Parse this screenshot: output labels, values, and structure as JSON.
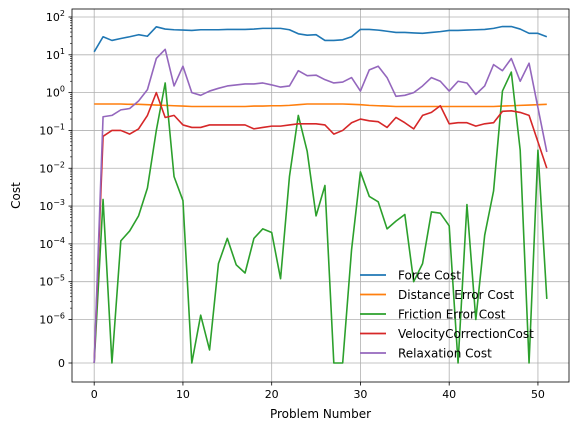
{
  "chart_data": {
    "type": "line",
    "title": "",
    "xlabel": "Problem Number",
    "ylabel": "Cost",
    "xlim": [
      -2.5,
      53.5
    ],
    "yscale": "symlog",
    "linthresh": 1e-06,
    "grid": true,
    "legend_position": "lower-right",
    "x_ticks": [
      0,
      10,
      20,
      30,
      40,
      50
    ],
    "x_tick_labels": [
      "0",
      "10",
      "20",
      "30",
      "40",
      "50"
    ],
    "y_ticks": [
      0,
      1e-06,
      1e-05,
      0.0001,
      0.001,
      0.01,
      0.1,
      1,
      10,
      100
    ],
    "y_tick_labels": [
      {
        "base": "",
        "exp": "",
        "plain": "0"
      },
      {
        "base": "10",
        "exp": "−6"
      },
      {
        "base": "10",
        "exp": "−5"
      },
      {
        "base": "10",
        "exp": "−4"
      },
      {
        "base": "10",
        "exp": "−3"
      },
      {
        "base": "10",
        "exp": "−2"
      },
      {
        "base": "10",
        "exp": "−1"
      },
      {
        "base": "10",
        "exp": "0"
      },
      {
        "base": "10",
        "exp": "1"
      },
      {
        "base": "10",
        "exp": "2"
      }
    ],
    "x": [
      0,
      1,
      2,
      3,
      4,
      5,
      6,
      7,
      8,
      9,
      10,
      11,
      12,
      13,
      14,
      15,
      16,
      17,
      18,
      19,
      20,
      21,
      22,
      23,
      24,
      25,
      26,
      27,
      28,
      29,
      30,
      31,
      32,
      33,
      34,
      35,
      36,
      37,
      38,
      39,
      40,
      41,
      42,
      43,
      44,
      45,
      46,
      47,
      48,
      49,
      50,
      51
    ],
    "series": [
      {
        "name": "Force Cost",
        "color": "#1f77b4",
        "values": [
          12,
          30,
          24,
          27,
          30,
          34,
          31,
          55,
          48,
          46,
          45,
          44,
          46,
          46,
          46,
          47,
          47,
          47,
          48,
          50,
          50,
          50,
          46,
          36,
          33,
          34,
          24,
          24,
          25,
          30,
          47,
          47,
          45,
          42,
          39,
          39,
          38,
          37,
          39,
          41,
          44,
          44,
          45,
          46,
          47,
          50,
          56,
          56,
          48,
          37,
          37,
          30
        ]
      },
      {
        "name": "Distance Error Cost",
        "color": "#ff7f0e",
        "values": [
          0.5,
          0.5,
          0.5,
          0.5,
          0.49,
          0.49,
          0.48,
          0.47,
          0.46,
          0.45,
          0.44,
          0.43,
          0.43,
          0.43,
          0.43,
          0.43,
          0.43,
          0.43,
          0.44,
          0.44,
          0.45,
          0.45,
          0.46,
          0.48,
          0.5,
          0.5,
          0.5,
          0.5,
          0.5,
          0.49,
          0.48,
          0.46,
          0.45,
          0.44,
          0.43,
          0.43,
          0.43,
          0.43,
          0.43,
          0.43,
          0.43,
          0.43,
          0.43,
          0.43,
          0.43,
          0.43,
          0.44,
          0.45,
          0.46,
          0.47,
          0.48,
          0.49
        ]
      },
      {
        "name": "Friction Error Cost",
        "color": "#2ca02c",
        "values": [
          0,
          0.0015,
          0,
          0.00012,
          0.00022,
          0.00055,
          0.003,
          0.1,
          1.8,
          0.006,
          0.0014,
          0,
          1.3e-06,
          3e-07,
          3e-05,
          0.00014,
          2.8e-05,
          1.7e-05,
          0.00014,
          0.00025,
          0.0002,
          1.2e-05,
          0.006,
          0.25,
          0.028,
          0.00055,
          0.0035,
          0,
          0,
          7e-05,
          0.008,
          0.0018,
          0.0013,
          0.00025,
          0.0004,
          0.0006,
          1e-05,
          3e-05,
          0.0007,
          0.00065,
          0.0003,
          0,
          0.0011,
          1e-06,
          0.00017,
          0.0025,
          1.1,
          3.5,
          0.03,
          0,
          0.03,
          3.5e-06
        ]
      },
      {
        "name": "VelocityCorrectionCost",
        "color": "#d62728",
        "values": [
          0,
          0.07,
          0.1,
          0.1,
          0.08,
          0.11,
          0.25,
          1.0,
          0.22,
          0.25,
          0.14,
          0.12,
          0.12,
          0.14,
          0.14,
          0.14,
          0.14,
          0.14,
          0.11,
          0.12,
          0.13,
          0.13,
          0.14,
          0.15,
          0.15,
          0.15,
          0.14,
          0.08,
          0.1,
          0.16,
          0.2,
          0.18,
          0.17,
          0.12,
          0.22,
          0.16,
          0.11,
          0.25,
          0.3,
          0.45,
          0.15,
          0.16,
          0.16,
          0.13,
          0.15,
          0.16,
          0.32,
          0.33,
          0.3,
          0.25,
          0.05,
          0.01
        ]
      },
      {
        "name": "Relaxation Cost",
        "color": "#9467bd",
        "values": [
          0,
          0.23,
          0.25,
          0.35,
          0.38,
          0.6,
          1.2,
          8.0,
          14,
          1.5,
          5.0,
          1.0,
          0.85,
          1.1,
          1.3,
          1.5,
          1.6,
          1.7,
          1.7,
          1.8,
          1.6,
          1.4,
          1.5,
          3.8,
          2.8,
          2.9,
          2.2,
          1.8,
          1.9,
          2.5,
          1.1,
          4.0,
          5.0,
          2.5,
          0.8,
          0.85,
          1.0,
          1.5,
          2.5,
          2.0,
          1.1,
          2.0,
          1.8,
          0.9,
          1.5,
          5.5,
          3.8,
          8.0,
          2.0,
          6.0,
          0.4,
          0.027
        ]
      }
    ]
  }
}
